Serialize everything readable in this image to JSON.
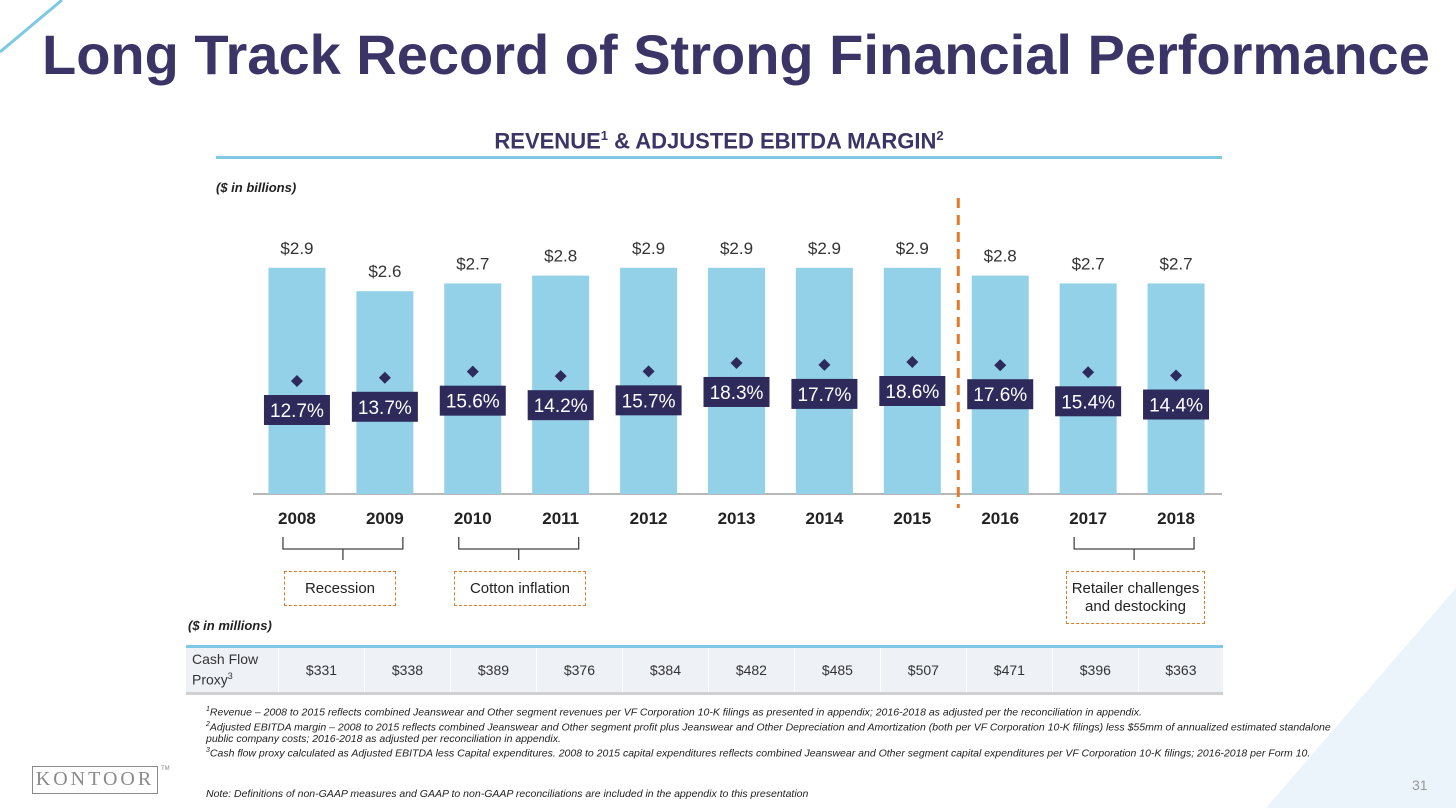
{
  "slide": {
    "title": "Long Track Record of Strong Financial Performance",
    "page_number": "31",
    "logo_text": "KONTOOR",
    "logo_tm": "TM"
  },
  "chart_data": {
    "type": "bar",
    "title": "REVENUE",
    "title_sup1": "1",
    "title_mid": " & ADJUSTED EBITDA MARGIN",
    "title_sup2": "2",
    "unit_label": "($ in billions)",
    "categories": [
      "2008",
      "2009",
      "2010",
      "2011",
      "2012",
      "2013",
      "2014",
      "2015",
      "2016",
      "2017",
      "2018"
    ],
    "series": [
      {
        "values": [
          2.9,
          2.6,
          2.7,
          2.8,
          2.9,
          2.9,
          2.9,
          2.9,
          2.8,
          2.7,
          2.7
        ],
        "labels": [
          "$2.9",
          "$2.6",
          "$2.7",
          "$2.8",
          "$2.9",
          "$2.9",
          "$2.9",
          "$2.9",
          "$2.8",
          "$2.7",
          "$2.7"
        ],
        "color": "#93d1e8"
      },
      {
        "values": [
          12.7,
          13.7,
          15.6,
          14.2,
          15.7,
          18.3,
          17.7,
          18.6,
          17.6,
          15.4,
          14.4
        ],
        "labels": [
          "12.7%",
          "13.7%",
          "15.6%",
          "14.2%",
          "15.7%",
          "18.3%",
          "17.7%",
          "18.6%",
          "17.6%",
          "15.4%",
          "14.4%"
        ],
        "color": "#2e2a5c"
      }
    ],
    "divider_after": "2015",
    "annotations": [
      {
        "text": "Recession",
        "from": "2008",
        "to": "2009"
      },
      {
        "text": "Cotton inflation",
        "from": "2010",
        "to": "2011"
      },
      {
        "text": "Retailer challenges and destocking",
        "from": "2017",
        "to": "2018"
      }
    ],
    "colors": {
      "bar": "#93d1e8",
      "marker": "#2e2a5c",
      "divider": "#e07b2a",
      "accent_rule": "#7ec8e3"
    }
  },
  "cash_flow": {
    "unit_label": "($ in millions)",
    "header": "Cash Flow Proxy",
    "header_sup": "3",
    "values": [
      "$331",
      "$338",
      "$389",
      "$376",
      "$384",
      "$482",
      "$485",
      "$507",
      "$471",
      "$396",
      "$363"
    ]
  },
  "footnotes": {
    "f1_sup": "1",
    "f1": "Revenue – 2008 to 2015 reflects combined Jeanswear and Other segment revenues per VF Corporation 10-K filings as presented in appendix; 2016-2018 as adjusted per the reconciliation in appendix.",
    "f2_sup": "2",
    "f2": "Adjusted EBITDA margin – 2008 to 2015 reflects combined Jeanswear and Other segment profit plus Jeanswear and Other Depreciation and Amortization (both per VF Corporation 10-K filings) less $55mm of annualized estimated standalone public company costs; 2016-2018 as adjusted per reconciliation in appendix.",
    "f3_sup": "3",
    "f3": "Cash flow proxy calculated as Adjusted EBITDA less Capital expenditures. 2008 to 2015 capital expenditures reflects combined Jeanswear and Other segment capital expenditures per VF Corporation 10-K filings; 2016-2018 per Form 10.",
    "gaap_note": "Note: Definitions of non-GAAP measures and GAAP to non-GAAP reconciliations are included in the appendix to this presentation"
  }
}
